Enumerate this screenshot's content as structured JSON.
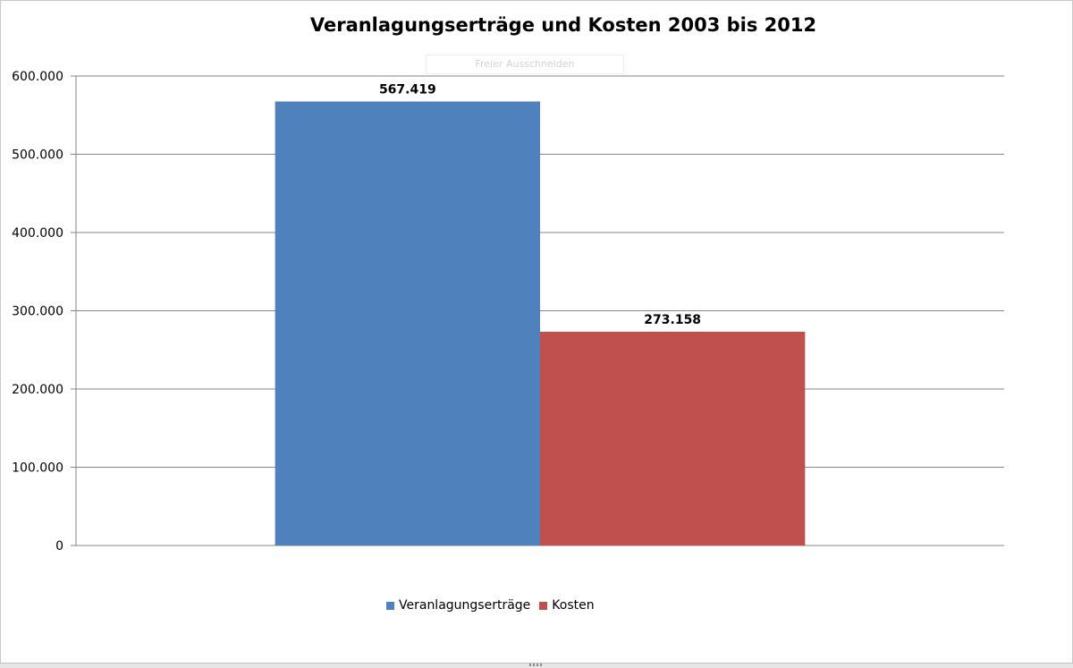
{
  "chart_data": {
    "type": "bar",
    "title": "Veranlagungserträge und Kosten 2003 bis 2012",
    "overlay_text": "Freier Ausschneiden",
    "categories": [
      ""
    ],
    "series": [
      {
        "name": "Veranlagungserträge",
        "values": [
          567419
        ],
        "label": "567.419",
        "color": "#4f81bd"
      },
      {
        "name": "Kosten",
        "values": [
          273158
        ],
        "label": "273.158",
        "color": "#c0504d"
      }
    ],
    "xlabel": "",
    "ylabel": "",
    "ylim": [
      0,
      600000
    ],
    "yticks": [
      0,
      100000,
      200000,
      300000,
      400000,
      500000,
      600000
    ],
    "ytick_labels": [
      "0",
      "100.000",
      "200.000",
      "300.000",
      "400.000",
      "500.000",
      "600.000"
    ],
    "grid": true,
    "legend_position": "bottom"
  }
}
